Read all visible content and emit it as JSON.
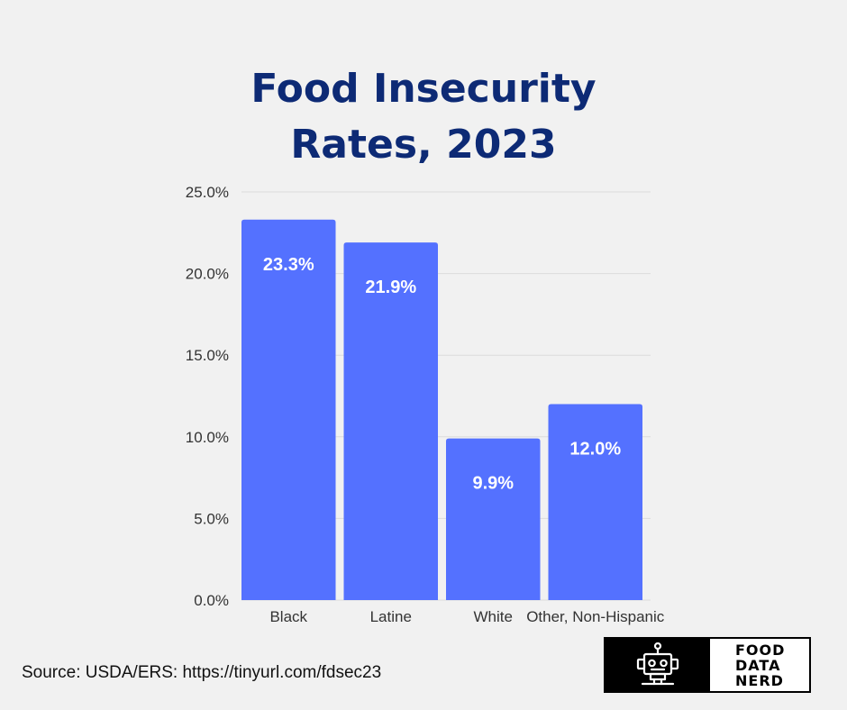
{
  "title": {
    "line1": "Food Insecurity",
    "line2": "Rates, 2023"
  },
  "colors": {
    "bar": "#5471ff",
    "title": "#0d2a75",
    "grid": "#dcdcdc",
    "background": "#f1f1f1"
  },
  "chart_data": {
    "type": "bar",
    "title": "Food Insecurity Rates, 2023",
    "categories": [
      "Black",
      "Latine",
      "White",
      "Other, Non-Hispanic"
    ],
    "values": [
      23.3,
      21.9,
      9.9,
      12.0
    ],
    "data_labels": [
      "23.3%",
      "21.9%",
      "9.9%",
      "12.0%"
    ],
    "ylim": [
      0,
      25
    ],
    "yticks": [
      0,
      5,
      10,
      15,
      20,
      25
    ],
    "ytick_labels": [
      "0.0%",
      "5.0%",
      "10.0%",
      "15.0%",
      "20.0%",
      "25.0%"
    ],
    "xlabel": "",
    "ylabel": "",
    "grid": true
  },
  "source": "Source: USDA/ERS: https://tinyurl.com/fdsec23",
  "logo": {
    "icon": "robot-icon",
    "lines": [
      "FOOD",
      "DATA",
      "NERD"
    ]
  }
}
